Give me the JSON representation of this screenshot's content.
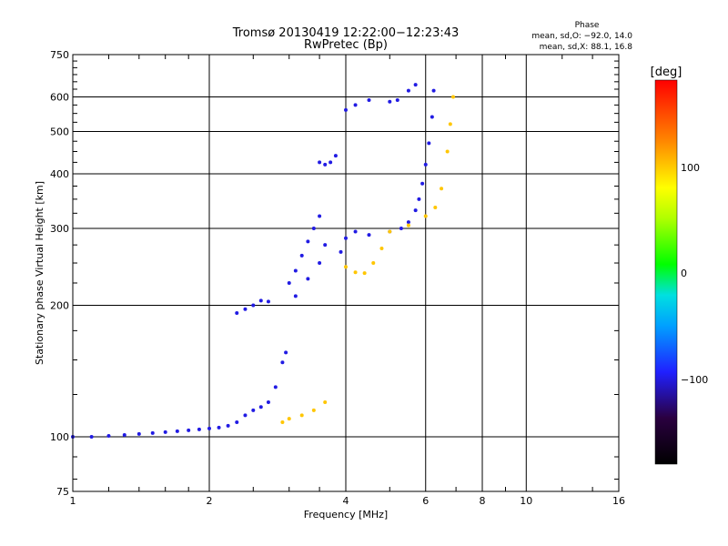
{
  "chart_data": {
    "type": "scatter",
    "title": "Tromsø 20130419 12:22:00−12:23:43",
    "subtitle": "RwPretec (Bp)",
    "xlabel": "Frequency [MHz]",
    "ylabel": "Stationary phase Virtual Height [km]",
    "x_scale": "log",
    "y_scale": "log",
    "xlim": [
      1,
      16
    ],
    "ylim": [
      75,
      750
    ],
    "x_ticks": [
      "1",
      "2",
      "4",
      "6",
      "8",
      "10",
      "16"
    ],
    "y_ticks": [
      "75",
      "100",
      "200",
      "300",
      "400",
      "500",
      "600",
      "750"
    ],
    "grid": true,
    "phase_stats": {
      "heading": "Phase",
      "line_o": "mean, sd,O: −92.0, 14.0",
      "line_x": "mean, sd,X:  88.1, 16.8"
    },
    "colorbar": {
      "label": "[deg]",
      "ticks": [
        "100",
        "0",
        "−100"
      ],
      "range": [
        -180,
        180
      ]
    },
    "series": [
      {
        "name": "O",
        "color_deg": -100,
        "points": [
          [
            1.0,
            100
          ],
          [
            1.1,
            100
          ],
          [
            1.2,
            100.5
          ],
          [
            1.3,
            101
          ],
          [
            1.4,
            101.5
          ],
          [
            1.5,
            102
          ],
          [
            1.6,
            102.5
          ],
          [
            1.7,
            103
          ],
          [
            1.8,
            103.5
          ],
          [
            1.9,
            104
          ],
          [
            2.0,
            104.5
          ],
          [
            2.1,
            105
          ],
          [
            2.2,
            106
          ],
          [
            2.3,
            108
          ],
          [
            2.4,
            112
          ],
          [
            2.5,
            115
          ],
          [
            2.6,
            117
          ],
          [
            2.7,
            120
          ],
          [
            2.8,
            130
          ],
          [
            2.9,
            148
          ],
          [
            2.95,
            156
          ],
          [
            2.3,
            192
          ],
          [
            2.4,
            196
          ],
          [
            2.5,
            200
          ],
          [
            2.6,
            205
          ],
          [
            2.7,
            204
          ],
          [
            3.0,
            225
          ],
          [
            3.1,
            240
          ],
          [
            3.2,
            260
          ],
          [
            3.3,
            280
          ],
          [
            3.4,
            300
          ],
          [
            3.5,
            320
          ],
          [
            3.1,
            210
          ],
          [
            3.3,
            230
          ],
          [
            3.5,
            250
          ],
          [
            3.6,
            275
          ],
          [
            3.5,
            425
          ],
          [
            3.6,
            420
          ],
          [
            3.7,
            425
          ],
          [
            3.8,
            440
          ],
          [
            3.9,
            265
          ],
          [
            4.0,
            285
          ],
          [
            4.2,
            295
          ],
          [
            4.5,
            290
          ],
          [
            5.0,
            295
          ],
          [
            5.3,
            300
          ],
          [
            5.5,
            310
          ],
          [
            5.7,
            330
          ],
          [
            5.8,
            350
          ],
          [
            5.9,
            380
          ],
          [
            6.0,
            420
          ],
          [
            6.1,
            470
          ],
          [
            6.2,
            540
          ],
          [
            6.25,
            620
          ],
          [
            4.0,
            560
          ],
          [
            4.2,
            575
          ],
          [
            4.5,
            590
          ],
          [
            5.0,
            585
          ],
          [
            5.2,
            590
          ],
          [
            5.5,
            620
          ],
          [
            5.7,
            640
          ]
        ]
      },
      {
        "name": "X",
        "color_deg": 100,
        "points": [
          [
            2.9,
            108
          ],
          [
            3.0,
            110
          ],
          [
            3.2,
            112
          ],
          [
            3.4,
            115
          ],
          [
            3.6,
            120
          ],
          [
            4.0,
            245
          ],
          [
            4.2,
            238
          ],
          [
            4.4,
            237
          ],
          [
            4.6,
            250
          ],
          [
            4.8,
            270
          ],
          [
            5.0,
            295
          ],
          [
            5.5,
            305
          ],
          [
            6.0,
            320
          ],
          [
            6.3,
            335
          ],
          [
            6.5,
            370
          ],
          [
            6.7,
            450
          ],
          [
            6.8,
            520
          ],
          [
            6.9,
            600
          ]
        ]
      }
    ]
  }
}
